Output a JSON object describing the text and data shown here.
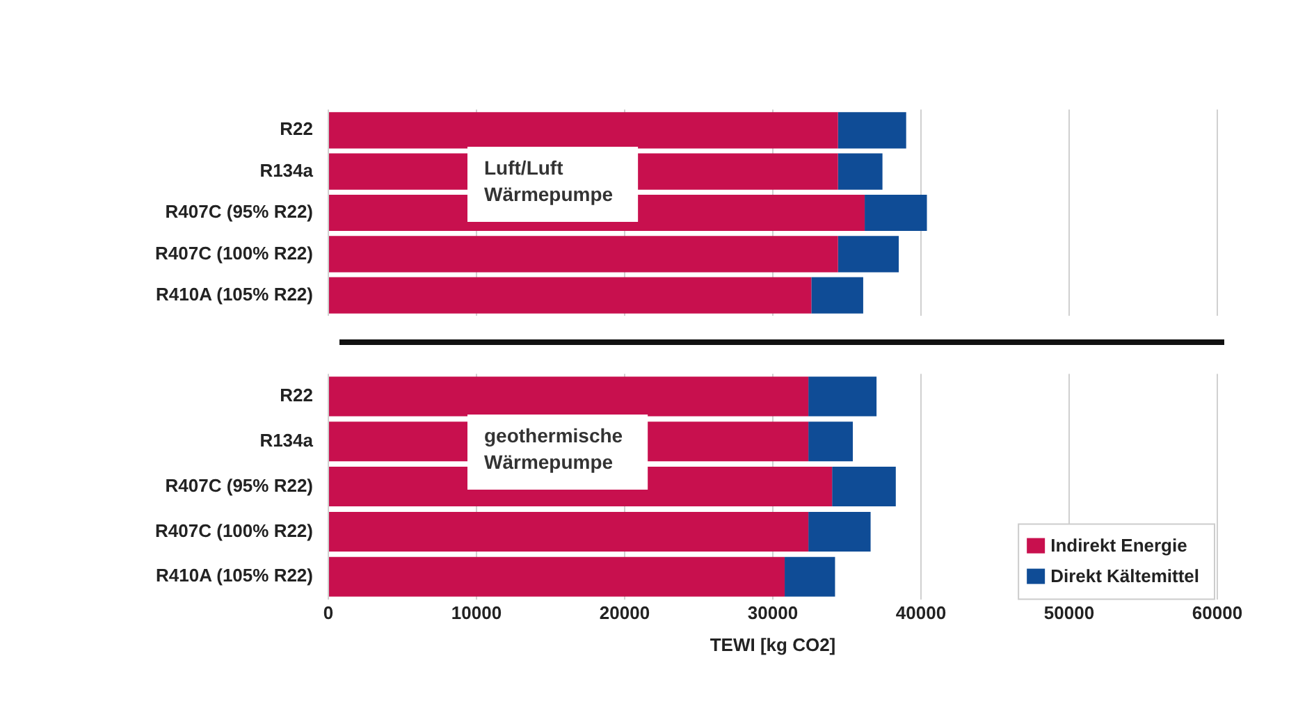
{
  "chart_data": [
    {
      "type": "bar",
      "orientation": "horizontal",
      "stacked": true,
      "categories": [
        "R22",
        "R134a",
        "R407C (95% R22)",
        "R407C (100% R22)",
        "R410A (105% R22)"
      ],
      "series": [
        {
          "color": "#c8104e",
          "values": [
            34400,
            34400,
            36200,
            34400,
            32600
          ]
        },
        {
          "color": "#0f4c96",
          "values": [
            4600,
            3000,
            4200,
            4100,
            3500
          ]
        }
      ],
      "xlim": [
        0,
        60000
      ],
      "xticks": [
        0,
        10000,
        20000,
        30000,
        40000,
        50000,
        60000
      ],
      "grid": "x",
      "tick_labels": "y",
      "annotations": [
        "Luft/Luft\nWärmepumpe"
      ]
    },
    {
      "type": "bar",
      "orientation": "horizontal",
      "stacked": true,
      "categories": [
        "R22",
        "R134a",
        "R407C (95% R22)",
        "R407C (100% R22)",
        "R410A (105% R22)"
      ],
      "series": [
        {
          "name": "Indirekt Energie",
          "color": "#c8104e",
          "values": [
            32400,
            32400,
            34000,
            32400,
            30800
          ]
        },
        {
          "name": "Direkt Kältemittel",
          "color": "#0f4c96",
          "values": [
            4600,
            3000,
            4300,
            4200,
            3400
          ]
        }
      ],
      "xlim": [
        0,
        60000
      ],
      "xticks": [
        0,
        10000,
        20000,
        30000,
        40000,
        50000,
        60000
      ],
      "grid": "x",
      "xlabel": "TEWI [kg CO2]",
      "legend": "bottom right",
      "annotations": [
        "geothermische\nWärmepumpe"
      ]
    }
  ]
}
